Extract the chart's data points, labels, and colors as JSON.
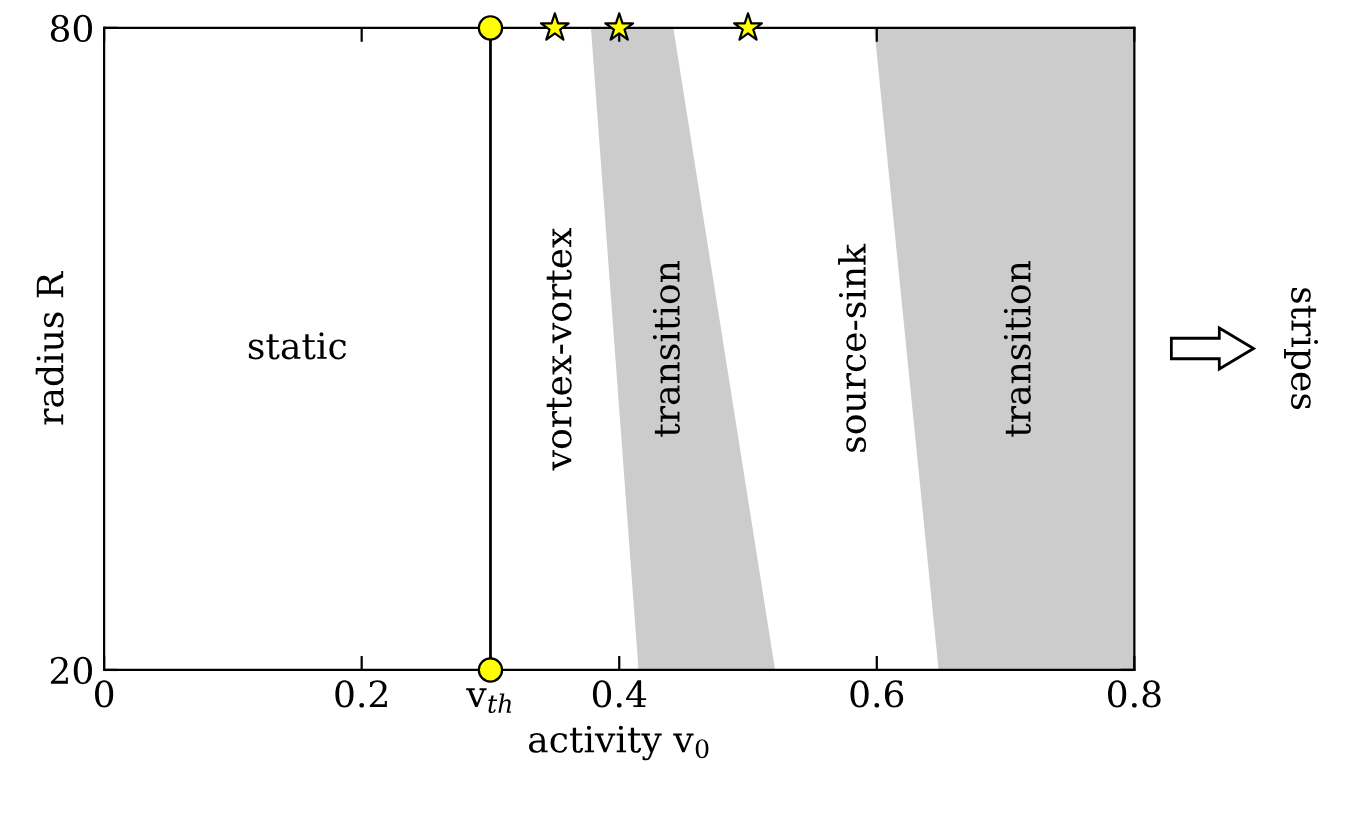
{
  "chart_data": {
    "type": "area",
    "xlabel": "activity v$_{0}$",
    "ylabel": "radius R",
    "xlim": [
      0,
      0.8
    ],
    "ylim": [
      20,
      80
    ],
    "xticks": [
      0,
      0.2,
      {
        "value": 0.3,
        "label": "v$_{th}$"
      },
      0.4,
      0.6,
      0.8
    ],
    "yticks": [
      20,
      80
    ],
    "series": [
      {
        "color": "#cccccc",
        "x": [
          0.378,
          0.442,
          0.521,
          0.415
        ],
        "values": [
          80,
          80,
          20,
          20
        ]
      },
      {
        "color": "#cccccc",
        "x": [
          0.598,
          0.8,
          0.8,
          0.648
        ],
        "values": [
          80,
          80,
          20,
          20
        ]
      },
      {
        "type": "scatter",
        "color": "#ffff00",
        "marker": "circle",
        "x": [
          0.3,
          0.3
        ],
        "values": [
          80,
          20
        ]
      },
      {
        "type": "scatter",
        "color": "#ffff00",
        "marker": "star",
        "x": [
          0.35,
          0.4,
          0.5
        ],
        "values": [
          80,
          80,
          80
        ]
      }
    ],
    "ref_lines": [
      {
        "axis": "x",
        "value": 0.3,
        "color": "#000000"
      }
    ],
    "annotations": [
      "static",
      "vortex-vortex",
      "transition",
      "source-sink",
      "transition",
      "stripes"
    ],
    "legend": false
  }
}
